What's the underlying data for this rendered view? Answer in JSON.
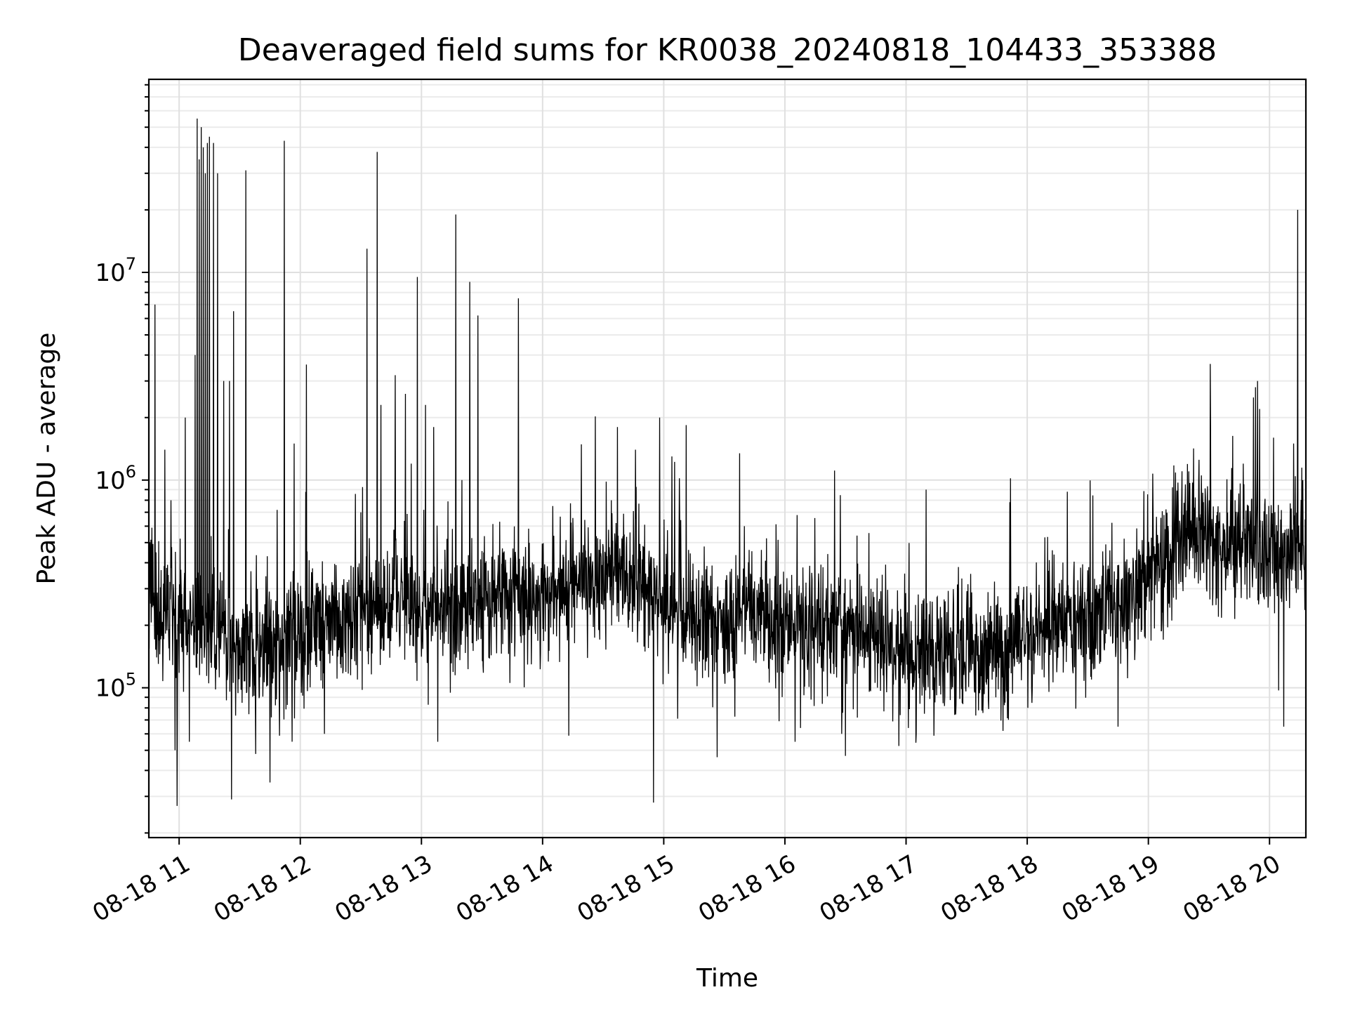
{
  "chart_data": {
    "type": "line",
    "title": "Deaveraged field sums for KR0038_20240818_104433_353388",
    "xlabel": "Time",
    "ylabel": "Peak ADU - average",
    "x_axis": {
      "type": "time",
      "range": [
        "2024-08-18 10:45",
        "2024-08-18 20:18"
      ],
      "tick_labels": [
        "08-18 11",
        "08-18 12",
        "08-18 13",
        "08-18 14",
        "08-18 15",
        "08-18 16",
        "08-18 17",
        "08-18 18",
        "08-18 19",
        "08-18 20"
      ],
      "tick_rotation_deg": 30
    },
    "y_axis": {
      "scale": "log",
      "range": [
        19000,
        85000000
      ],
      "tick_values": [
        100000,
        1000000,
        10000000
      ],
      "tick_labels": [
        {
          "base": "10",
          "exp": "5"
        },
        {
          "base": "10",
          "exp": "6"
        },
        {
          "base": "10",
          "exp": "7"
        }
      ]
    },
    "grid": "major and minor",
    "line_color": "#000000",
    "anchor_points": [
      {
        "t": "10:45",
        "y": 250000
      },
      {
        "t": "11:10",
        "y": 200000
      },
      {
        "t": "11:30",
        "y": 150000
      },
      {
        "t": "11:50",
        "y": 170000
      },
      {
        "t": "12:15",
        "y": 210000
      },
      {
        "t": "12:45",
        "y": 260000
      },
      {
        "t": "13:00",
        "y": 240000
      },
      {
        "t": "13:40",
        "y": 280000
      },
      {
        "t": "14:20",
        "y": 300000
      },
      {
        "t": "14:40",
        "y": 400000
      },
      {
        "t": "15:00",
        "y": 250000
      },
      {
        "t": "16:00",
        "y": 200000
      },
      {
        "t": "16:30",
        "y": 190000
      },
      {
        "t": "17:15",
        "y": 140000
      },
      {
        "t": "17:40",
        "y": 160000
      },
      {
        "t": "18:20",
        "y": 200000
      },
      {
        "t": "18:50",
        "y": 280000
      },
      {
        "t": "19:20",
        "y": 550000
      },
      {
        "t": "19:50",
        "y": 450000
      },
      {
        "t": "20:18",
        "y": 480000
      }
    ],
    "noise_sigma_dex": 0.15,
    "spikes": [
      {
        "t": "10:45",
        "y": 20000000
      },
      {
        "t": "10:48",
        "y": 7000000
      },
      {
        "t": "10:53",
        "y": 1400000
      },
      {
        "t": "10:56",
        "y": 800000
      },
      {
        "t": "10:58",
        "y": 50000,
        "down": true
      },
      {
        "t": "10:59",
        "y": 27000,
        "down": true
      },
      {
        "t": "11:03",
        "y": 2000000
      },
      {
        "t": "11:05",
        "y": 55000,
        "down": true
      },
      {
        "t": "11:08",
        "y": 4000000
      },
      {
        "t": "11:09",
        "y": 55000000
      },
      {
        "t": "11:10",
        "y": 35000000
      },
      {
        "t": "11:11",
        "y": 50000000
      },
      {
        "t": "11:12",
        "y": 40000000
      },
      {
        "t": "11:13",
        "y": 30000000
      },
      {
        "t": "11:14",
        "y": 42000000
      },
      {
        "t": "11:15",
        "y": 45000000
      },
      {
        "t": "11:17",
        "y": 42000000
      },
      {
        "t": "11:19",
        "y": 30000000
      },
      {
        "t": "11:22",
        "y": 3000000
      },
      {
        "t": "11:25",
        "y": 3000000
      },
      {
        "t": "11:26",
        "y": 29000,
        "down": true
      },
      {
        "t": "11:27",
        "y": 6500000
      },
      {
        "t": "11:33",
        "y": 31000000
      },
      {
        "t": "11:38",
        "y": 48000,
        "down": true
      },
      {
        "t": "11:45",
        "y": 35000,
        "down": true
      },
      {
        "t": "11:56",
        "y": 55000,
        "down": true
      },
      {
        "t": "11:52",
        "y": 43000000
      },
      {
        "t": "11:57",
        "y": 1500000
      },
      {
        "t": "12:03",
        "y": 3600000
      },
      {
        "t": "12:12",
        "y": 60000,
        "down": true
      },
      {
        "t": "12:30",
        "y": 700000
      },
      {
        "t": "12:33",
        "y": 13000000
      },
      {
        "t": "12:38",
        "y": 38000000
      },
      {
        "t": "12:40",
        "y": 2300000
      },
      {
        "t": "12:47",
        "y": 3200000
      },
      {
        "t": "12:52",
        "y": 2600000
      },
      {
        "t": "12:55",
        "y": 1200000
      },
      {
        "t": "12:58",
        "y": 9500000
      },
      {
        "t": "13:02",
        "y": 2300000
      },
      {
        "t": "13:06",
        "y": 1800000
      },
      {
        "t": "13:08",
        "y": 55000,
        "down": true
      },
      {
        "t": "13:17",
        "y": 19000000
      },
      {
        "t": "13:20",
        "y": 1000000
      },
      {
        "t": "13:24",
        "y": 9000000
      },
      {
        "t": "13:28",
        "y": 6200000
      },
      {
        "t": "13:48",
        "y": 7500000
      },
      {
        "t": "14:05",
        "y": 750000
      },
      {
        "t": "14:34",
        "y": 800000
      },
      {
        "t": "14:37",
        "y": 1800000
      },
      {
        "t": "14:46",
        "y": 1400000
      },
      {
        "t": "14:55",
        "y": 28000,
        "down": true
      },
      {
        "t": "14:58",
        "y": 2000000
      },
      {
        "t": "15:04",
        "y": 1300000
      },
      {
        "t": "15:40",
        "y": 600000
      },
      {
        "t": "16:05",
        "y": 55000,
        "down": true
      },
      {
        "t": "16:30",
        "y": 47000,
        "down": true
      },
      {
        "t": "17:10",
        "y": 900000
      },
      {
        "t": "17:05",
        "y": 60000,
        "down": true
      },
      {
        "t": "17:48",
        "y": 62000,
        "down": true
      },
      {
        "t": "18:45",
        "y": 65000,
        "down": true
      },
      {
        "t": "19:13",
        "y": 400000
      },
      {
        "t": "19:43",
        "y": 800000
      },
      {
        "t": "19:47",
        "y": 1200000
      },
      {
        "t": "19:52",
        "y": 2500000
      },
      {
        "t": "19:53",
        "y": 2800000
      },
      {
        "t": "19:54",
        "y": 3000000
      },
      {
        "t": "19:55",
        "y": 2200000
      },
      {
        "t": "20:02",
        "y": 1600000
      },
      {
        "t": "20:07",
        "y": 65000,
        "down": true
      },
      {
        "t": "20:12",
        "y": 1500000
      },
      {
        "t": "20:14",
        "y": 20000000
      }
    ]
  }
}
